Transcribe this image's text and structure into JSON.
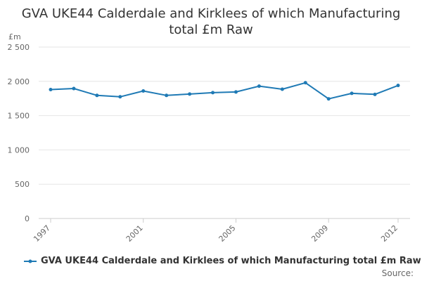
{
  "chart_data": {
    "type": "line",
    "title_lines": [
      "GVA UKE44 Calderdale and Kirklees of which Manufacturing",
      "total £m Raw"
    ],
    "ylabel": "£m",
    "xlabel": "",
    "ylim": [
      0,
      2500
    ],
    "yticks": [
      0,
      500,
      1000,
      1500,
      2000,
      2500
    ],
    "ytick_labels": [
      "0",
      "500",
      "1 000",
      "1 500",
      "2 000",
      "2 500"
    ],
    "xlim": [
      1997,
      2012
    ],
    "xtick_labels": [
      "1997",
      "2001",
      "2005",
      "2009",
      "2012"
    ],
    "grid": true,
    "legend_position": "bottom",
    "series": [
      {
        "name": "GVA UKE44 Calderdale and Kirklees of which Manufacturing total £m Raw",
        "color": "#1f7ab5",
        "x": [
          1997,
          1998,
          1999,
          2000,
          2001,
          2002,
          2003,
          2004,
          2005,
          2006,
          2007,
          2008,
          2009,
          2010,
          2011,
          2012
        ],
        "values": [
          1880,
          1895,
          1795,
          1775,
          1860,
          1795,
          1815,
          1835,
          1845,
          1930,
          1885,
          1980,
          1745,
          1825,
          1810,
          1940
        ]
      }
    ]
  },
  "footer": {
    "source_label": "Source:"
  }
}
